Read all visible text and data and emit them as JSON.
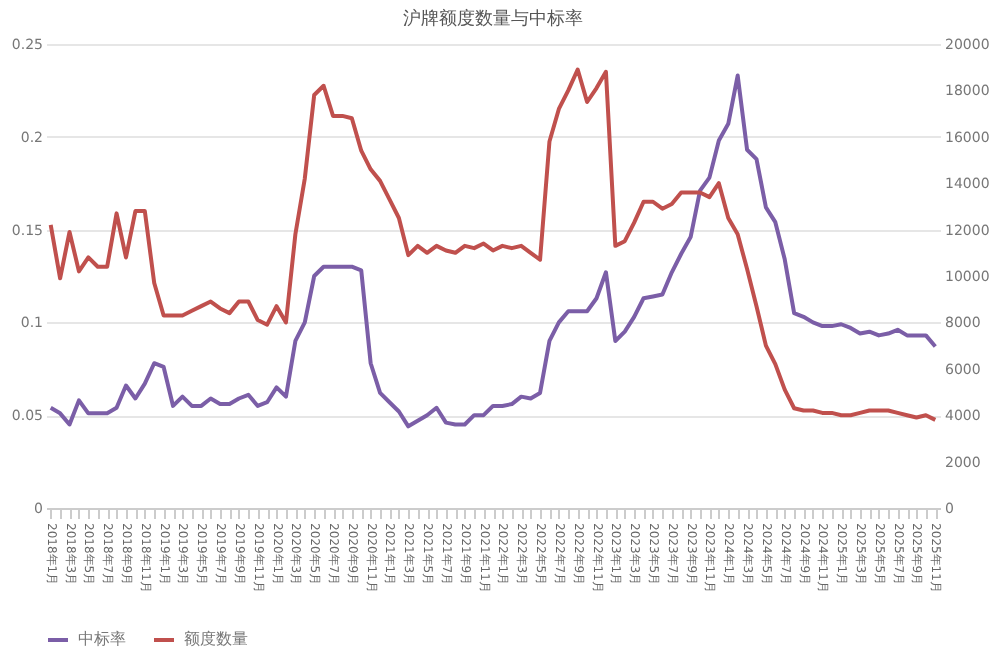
{
  "chart_data": {
    "type": "line",
    "title": "沪牌额度数量与中标率",
    "categories": [
      "2018年1月",
      null,
      "2018年3月",
      null,
      "2018年5月",
      null,
      "2018年7月",
      null,
      "2018年9月",
      null,
      "2018年11月",
      null,
      "2019年1月",
      null,
      "2019年3月",
      null,
      "2019年5月",
      null,
      "2019年7月",
      null,
      "2019年9月",
      null,
      "2019年11月",
      null,
      "2020年1月",
      null,
      "2020年3月",
      null,
      "2020年5月",
      null,
      "2020年7月",
      null,
      "2020年9月",
      null,
      "2020年11月",
      null,
      "2021年1月",
      null,
      "2021年3月",
      null,
      "2021年5月",
      null,
      "2021年7月",
      null,
      "2021年9月",
      null,
      "2021年11月",
      null,
      "2022年1月",
      null,
      "2022年3月",
      null,
      "2022年5月",
      null,
      "2022年7月",
      null,
      "2022年9月",
      null,
      "2022年11月",
      null,
      "2023年1月",
      null,
      "2023年3月",
      null,
      "2023年5月",
      null,
      "2023年7月",
      null,
      "2023年9月",
      null,
      "2023年11月",
      null,
      "2024年1月",
      null,
      "2024年3月",
      null,
      "2024年5月",
      null,
      "2024年7月",
      null,
      "2024年9月",
      null,
      "2024年11月",
      null,
      "2025年1月",
      null,
      "2025年3月",
      null,
      "2025年5月",
      null,
      "2025年7月",
      null,
      "2025年9月",
      null,
      "2025年11月"
    ],
    "series": [
      {
        "name": "中标率",
        "color": "#7b5ea7",
        "values": [
          0.054,
          0.051,
          0.045,
          0.058,
          0.051,
          0.051,
          0.051,
          0.054,
          0.066,
          0.059,
          0.067,
          0.078,
          0.076,
          0.055,
          0.06,
          0.055,
          0.055,
          0.059,
          0.056,
          0.056,
          0.059,
          0.061,
          0.055,
          0.057,
          0.065,
          0.06,
          0.09,
          0.1,
          0.125,
          0.13,
          0.13,
          0.13,
          0.13,
          0.128,
          0.078,
          0.062,
          0.057,
          0.052,
          0.044,
          0.047,
          0.05,
          0.054,
          0.046,
          0.045,
          0.045,
          0.05,
          0.05,
          0.055,
          0.055,
          0.056,
          0.06,
          0.059,
          0.062,
          0.09,
          0.1,
          0.106,
          0.106,
          0.106,
          0.113,
          0.127,
          0.09,
          0.095,
          0.103,
          0.113,
          0.114,
          0.115,
          0.127,
          0.137,
          0.146,
          0.171,
          0.178,
          0.198,
          0.207,
          0.233,
          0.193,
          0.188,
          0.162,
          0.154,
          0.134,
          0.105,
          0.103,
          0.1,
          0.098,
          0.098,
          0.099,
          0.097,
          0.094,
          0.095,
          0.093,
          0.094,
          0.096,
          0.093,
          0.093,
          0.093,
          0.087
        ]
      },
      {
        "name": "额度数量",
        "color": "#c0504d",
        "axis": "y2",
        "values": [
          12200,
          9900,
          11900,
          10200,
          10800,
          10400,
          10400,
          12700,
          10800,
          12800,
          12800,
          9700,
          8300,
          8300,
          8300,
          8500,
          8700,
          8900,
          8600,
          8400,
          8900,
          8900,
          8100,
          7900,
          8700,
          8000,
          11800,
          14200,
          17800,
          18200,
          16900,
          16900,
          16800,
          15400,
          14600,
          14100,
          13300,
          12500,
          10900,
          11300,
          11000,
          11300,
          11100,
          11000,
          11300,
          11200,
          11400,
          11100,
          11300,
          11200,
          11300,
          11000,
          10700,
          15800,
          17200,
          18000,
          18900,
          17500,
          18100,
          18800,
          11300,
          11500,
          12300,
          13200,
          13200,
          12900,
          13100,
          13600,
          13600,
          13600,
          13400,
          14000,
          12500,
          11800,
          10300,
          8700,
          7000,
          6200,
          5100,
          4300,
          4200,
          4200,
          4100,
          4100,
          4000,
          4000,
          4100,
          4200,
          4200,
          4200,
          4100,
          4000,
          3900,
          4000,
          3800
        ]
      }
    ],
    "ylim": [
      0,
      0.25
    ],
    "yticks": [
      0,
      0.05,
      0.1,
      0.15,
      0.2,
      0.25
    ],
    "y2lim": [
      0,
      20000
    ],
    "y2ticks": [
      0,
      2000,
      4000,
      6000,
      8000,
      10000,
      12000,
      14000,
      16000,
      18000,
      20000
    ],
    "grid": "y",
    "legend": "bottom"
  }
}
